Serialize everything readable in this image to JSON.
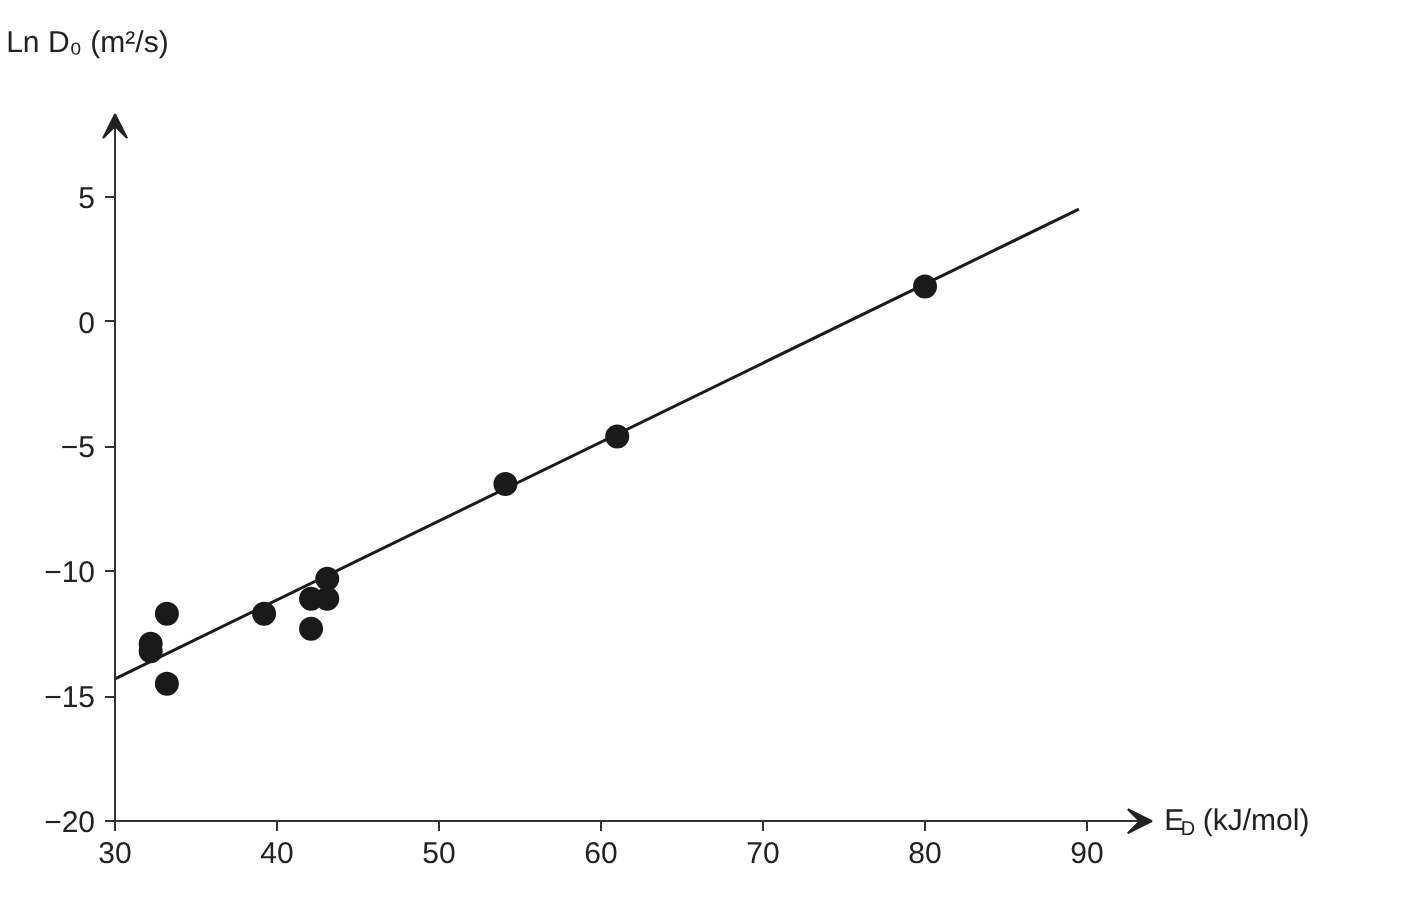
{
  "chart_data": {
    "type": "scatter",
    "xlabel": "E$_{D}$ (kJ/mol)",
    "ylabel": "Ln D₀ (m²/s)",
    "xlim": [
      30,
      94
    ],
    "ylim": [
      -20,
      8.3
    ],
    "xticks": [
      30,
      40,
      50,
      60,
      70,
      80,
      90
    ],
    "yticks": [
      -20,
      -15,
      -10,
      -5,
      0,
      5
    ],
    "grid": false,
    "series": [
      {
        "marker": "circle",
        "color": "#1a1a1a",
        "x": [
          32.2,
          32.2,
          33.2,
          33.2,
          39.2,
          42.1,
          43.1,
          43.1,
          42.1,
          54.1,
          61,
          80
        ],
        "values": [
          -12.9,
          -13.2,
          -11.7,
          -14.5,
          -11.7,
          -11.1,
          -11.1,
          -10.3,
          -12.3,
          -6.5,
          -4.6,
          1.4
        ]
      },
      {
        "type": "line",
        "color": "#1a1a1a",
        "x": [
          30,
          89.5
        ],
        "values": [
          -14.3,
          4.5
        ]
      }
    ]
  }
}
